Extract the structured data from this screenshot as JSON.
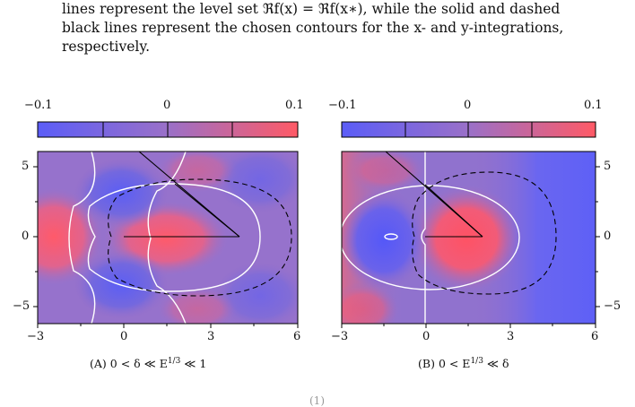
{
  "caption_lines": [
    "lines represent the level set ℜf(x) = ℜf(x∗), while the solid and dashed",
    "black lines represent the chosen contours for the x- and y-integrations,",
    "respectively."
  ],
  "panels": [
    {
      "id": "A",
      "subcaption_tag": "(A)",
      "subcaption_text": "0 < δ ≪ E¹ᐟ³ ≪ 1",
      "colorbar_ticks": [
        "−0.1",
        "0",
        "0.1"
      ],
      "x_ticks": [
        "−3",
        "0",
        "3",
        "6"
      ],
      "y_ticks": [
        "5",
        "0",
        "−5"
      ],
      "y_tick_side": "left"
    },
    {
      "id": "B",
      "subcaption_tag": "(B)",
      "subcaption_text": "0 < E¹ᐟ³ ≪ δ",
      "colorbar_ticks": [
        "−0.1",
        "0",
        "0.1"
      ],
      "x_ticks": [
        "−3",
        "0",
        "3",
        "6"
      ],
      "y_ticks": [
        "5",
        "0",
        "−5"
      ],
      "y_tick_side": "right"
    }
  ],
  "colors": {
    "negative": "#6a6cf2",
    "neutral": "#9a72c8",
    "positive": "#f06272",
    "level_set": "#ffffff",
    "contour": "#000000"
  },
  "page_mark": "(1)"
}
